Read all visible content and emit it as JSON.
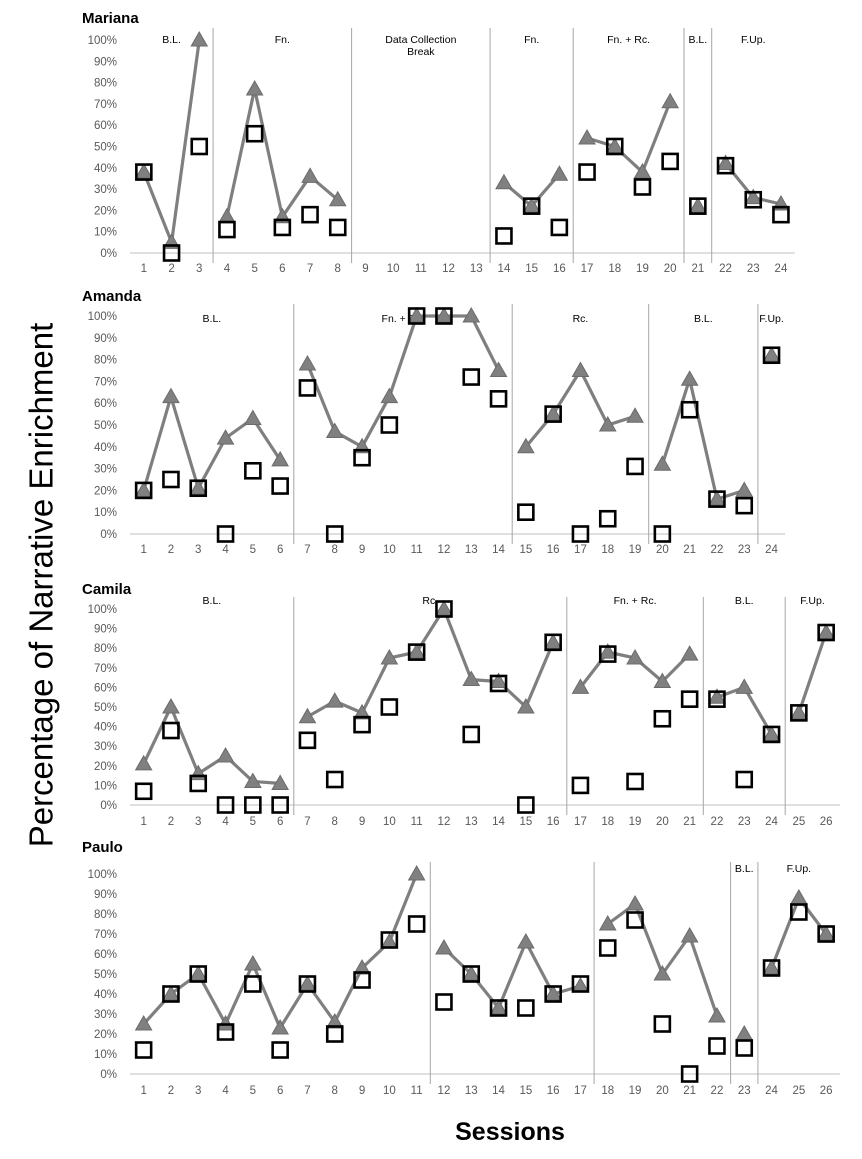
{
  "ylabel": "Percentage of Narrative Enrichment",
  "xlabel": "Sessions",
  "colors": {
    "line": "#7f7f7f",
    "triangle": "#808080",
    "square_stroke": "#000000",
    "axis": "#bfbfbf",
    "text": "#595959"
  },
  "chart_data": [
    {
      "type": "line",
      "title": "Mariana",
      "ylim": [
        0,
        100
      ],
      "yticks": [
        "0%",
        "10%",
        "20%",
        "30%",
        "40%",
        "50%",
        "60%",
        "70%",
        "80%",
        "90%",
        "100%"
      ],
      "x": [
        1,
        2,
        3,
        4,
        5,
        6,
        7,
        8,
        9,
        10,
        11,
        12,
        13,
        14,
        15,
        16,
        17,
        18,
        19,
        20,
        21,
        22,
        23,
        24
      ],
      "phases": [
        {
          "label": "B.L.",
          "start": 1,
          "end": 3
        },
        {
          "label": "Fn.",
          "start": 4,
          "end": 8
        },
        {
          "label": "Data Collection Break",
          "start": 9,
          "end": 13
        },
        {
          "label": "Fn.",
          "start": 14,
          "end": 16
        },
        {
          "label": "Fn. + Rc.",
          "start": 17,
          "end": 20
        },
        {
          "label": "B.L.",
          "start": 21,
          "end": 21
        },
        {
          "label": "F.Up.",
          "start": 22,
          "end": 24
        }
      ],
      "series": [
        {
          "marker": "triangle",
          "values": [
            38,
            5,
            100,
            17,
            77,
            17,
            36,
            25,
            null,
            null,
            null,
            null,
            null,
            33,
            22,
            37,
            54,
            50,
            38,
            71,
            22,
            42,
            26,
            23
          ]
        },
        {
          "marker": "square",
          "values": [
            38,
            0,
            50,
            11,
            56,
            12,
            18,
            12,
            null,
            null,
            null,
            null,
            null,
            8,
            22,
            12,
            38,
            50,
            31,
            43,
            22,
            41,
            25,
            18
          ]
        }
      ]
    },
    {
      "type": "line",
      "title": "Amanda",
      "ylim": [
        0,
        100
      ],
      "yticks": [
        "0%",
        "10%",
        "20%",
        "30%",
        "40%",
        "50%",
        "60%",
        "70%",
        "80%",
        "90%",
        "100%"
      ],
      "x": [
        1,
        2,
        3,
        4,
        5,
        6,
        7,
        8,
        9,
        10,
        11,
        12,
        13,
        14,
        15,
        16,
        17,
        18,
        19,
        20,
        21,
        22,
        23,
        24
      ],
      "phases": [
        {
          "label": "B.L.",
          "start": 1,
          "end": 6
        },
        {
          "label": "Fn. + Rc.",
          "start": 7,
          "end": 14
        },
        {
          "label": "Rc.",
          "start": 15,
          "end": 19
        },
        {
          "label": "B.L.",
          "start": 20,
          "end": 23
        },
        {
          "label": "F.Up.",
          "start": 24,
          "end": 24
        }
      ],
      "series": [
        {
          "marker": "triangle",
          "values": [
            20,
            63,
            21,
            44,
            53,
            34,
            78,
            47,
            40,
            63,
            100,
            100,
            100,
            75,
            40,
            55,
            75,
            50,
            54,
            32,
            71,
            16,
            20,
            82
          ]
        },
        {
          "marker": "square",
          "values": [
            20,
            25,
            21,
            0,
            29,
            22,
            67,
            0,
            35,
            50,
            100,
            100,
            72,
            62,
            10,
            55,
            0,
            7,
            31,
            0,
            57,
            16,
            13,
            82
          ]
        }
      ]
    },
    {
      "type": "line",
      "title": "Camila",
      "ylim": [
        0,
        100
      ],
      "yticks": [
        "0%",
        "10%",
        "20%",
        "30%",
        "40%",
        "50%",
        "60%",
        "70%",
        "80%",
        "90%",
        "100%"
      ],
      "x": [
        1,
        2,
        3,
        4,
        5,
        6,
        7,
        8,
        9,
        10,
        11,
        12,
        13,
        14,
        15,
        16,
        17,
        18,
        19,
        20,
        21,
        22,
        23,
        24,
        25,
        26
      ],
      "phases": [
        {
          "label": "B.L.",
          "start": 1,
          "end": 6
        },
        {
          "label": "Rc.",
          "start": 7,
          "end": 16
        },
        {
          "label": "Fn. + Rc.",
          "start": 17,
          "end": 21
        },
        {
          "label": "B.L.",
          "start": 22,
          "end": 24
        },
        {
          "label": "F.Up.",
          "start": 25,
          "end": 26
        }
      ],
      "series": [
        {
          "marker": "triangle",
          "values": [
            21,
            50,
            16,
            25,
            12,
            11,
            45,
            53,
            47,
            75,
            78,
            100,
            64,
            63,
            50,
            83,
            60,
            78,
            75,
            63,
            77,
            55,
            60,
            36,
            47,
            88
          ]
        },
        {
          "marker": "square",
          "values": [
            7,
            38,
            11,
            0,
            0,
            0,
            33,
            13,
            41,
            50,
            78,
            100,
            36,
            62,
            0,
            83,
            10,
            77,
            12,
            44,
            54,
            54,
            13,
            36,
            47,
            88
          ]
        }
      ]
    },
    {
      "type": "line",
      "title": "Paulo",
      "ylim": [
        0,
        100
      ],
      "yticks": [
        "0%",
        "10%",
        "20%",
        "30%",
        "40%",
        "50%",
        "60%",
        "70%",
        "80%",
        "90%",
        "100%"
      ],
      "x": [
        1,
        2,
        3,
        4,
        5,
        6,
        7,
        8,
        9,
        10,
        11,
        12,
        13,
        14,
        15,
        16,
        17,
        18,
        19,
        20,
        21,
        22,
        23,
        24,
        25,
        26
      ],
      "xticks": [
        "1",
        "2",
        "3",
        "4",
        "5",
        "6",
        "7",
        "8",
        "9",
        "10",
        "11",
        "12",
        "13",
        "14",
        "15",
        "16",
        "17",
        "18",
        "19",
        "20",
        "21",
        "22",
        "23",
        "24",
        "25",
        "26"
      ],
      "phases": [
        {
          "label": "",
          "start": 1,
          "end": 11
        },
        {
          "label": "",
          "start": 12,
          "end": 17
        },
        {
          "label": "",
          "start": 18,
          "end": 22
        },
        {
          "label": "B.L.",
          "start": 23,
          "end": 23
        },
        {
          "label": "F.Up.",
          "start": 24,
          "end": 26
        }
      ],
      "series": [
        {
          "marker": "triangle",
          "values": [
            25,
            40,
            50,
            25,
            55,
            23,
            45,
            26,
            53,
            66,
            100,
            63,
            50,
            33,
            66,
            40,
            44,
            75,
            85,
            50,
            69,
            29,
            20,
            53,
            88,
            70
          ]
        },
        {
          "marker": "square",
          "values": [
            12,
            40,
            50,
            21,
            45,
            12,
            45,
            20,
            47,
            67,
            75,
            36,
            50,
            33,
            33,
            40,
            45,
            63,
            77,
            25,
            0,
            14,
            13,
            53,
            81,
            70
          ]
        }
      ]
    }
  ]
}
